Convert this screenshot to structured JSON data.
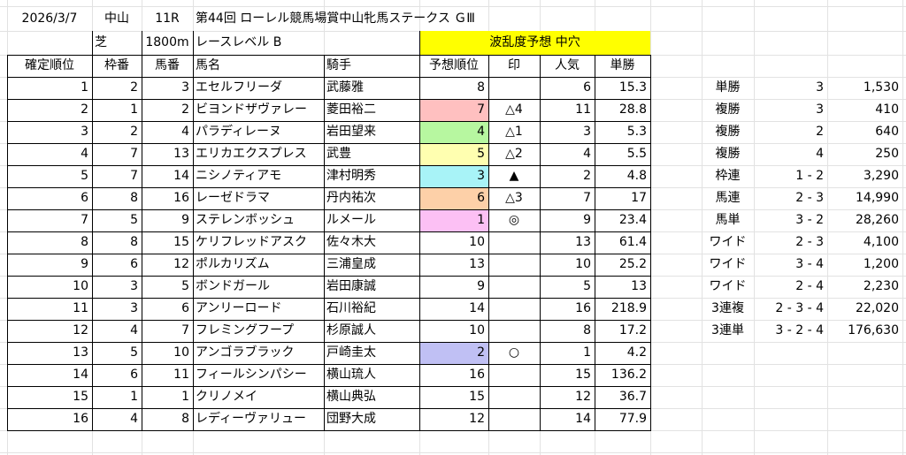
{
  "race": {
    "date": "2026/3/7",
    "venue": "中山",
    "race_no": "11R",
    "title": "第44回 ローレル競馬場賞中山牝馬ステークス ＧⅢ",
    "surface": "芝",
    "distance": "1800m",
    "level": "レースレベル B",
    "forecast": "波乱度予想 中穴"
  },
  "colors": {
    "forecast_bg": "#ffff00",
    "border": "#000000",
    "grid": "#e2e2e2"
  },
  "headers": [
    "確定順位",
    "枠番",
    "馬番",
    "馬名",
    "騎手",
    "予想順位",
    "印",
    "人気",
    "単勝"
  ],
  "rows": [
    {
      "pos": "1",
      "waku": "2",
      "uma": "3",
      "name": "エセルフリーダ",
      "jockey": "武藤雅",
      "pred": "8",
      "mark": "",
      "pop": "6",
      "odds": "15.3",
      "color": ""
    },
    {
      "pos": "2",
      "waku": "1",
      "uma": "2",
      "name": "ビヨンドザヴァレー",
      "jockey": "菱田裕二",
      "pred": "7",
      "mark": "△4",
      "pop": "11",
      "odds": "28.8",
      "color": "#ffc0c0"
    },
    {
      "pos": "3",
      "waku": "2",
      "uma": "4",
      "name": "パラディレーヌ",
      "jockey": "岩田望来",
      "pred": "4",
      "mark": "△1",
      "pop": "3",
      "odds": "5.3",
      "color": "#b7f7a0"
    },
    {
      "pos": "4",
      "waku": "7",
      "uma": "13",
      "name": "エリカエクスプレス",
      "jockey": "武豊",
      "pred": "5",
      "mark": "△2",
      "pop": "4",
      "odds": "5.5",
      "color": "#ffffb0"
    },
    {
      "pos": "5",
      "waku": "7",
      "uma": "14",
      "name": "ニシノティアモ",
      "jockey": "津村明秀",
      "pred": "3",
      "mark": "▲",
      "pop": "2",
      "odds": "4.8",
      "color": "#a8f3f7"
    },
    {
      "pos": "6",
      "waku": "8",
      "uma": "16",
      "name": "レーゼドラマ",
      "jockey": "丹内祐次",
      "pred": "6",
      "mark": "△3",
      "pop": "7",
      "odds": "17",
      "color": "#fdd0a8"
    },
    {
      "pos": "7",
      "waku": "5",
      "uma": "9",
      "name": "ステレンボッシュ",
      "jockey": "ルメール",
      "pred": "1",
      "mark": "◎",
      "pop": "9",
      "odds": "23.4",
      "color": "#fcc0f4"
    },
    {
      "pos": "8",
      "waku": "8",
      "uma": "15",
      "name": "ケリフレッドアスク",
      "jockey": "佐々木大",
      "pred": "10",
      "mark": "",
      "pop": "13",
      "odds": "61.4",
      "color": ""
    },
    {
      "pos": "9",
      "waku": "6",
      "uma": "12",
      "name": "ポルカリズム",
      "jockey": "三浦皇成",
      "pred": "13",
      "mark": "",
      "pop": "10",
      "odds": "25.2",
      "color": ""
    },
    {
      "pos": "10",
      "waku": "3",
      "uma": "5",
      "name": "ボンドガール",
      "jockey": "岩田康誠",
      "pred": "9",
      "mark": "",
      "pop": "5",
      "odds": "13",
      "color": ""
    },
    {
      "pos": "11",
      "waku": "3",
      "uma": "6",
      "name": "アンリーロード",
      "jockey": "石川裕紀",
      "pred": "14",
      "mark": "",
      "pop": "16",
      "odds": "218.9",
      "color": ""
    },
    {
      "pos": "12",
      "waku": "4",
      "uma": "7",
      "name": "フレミングフープ",
      "jockey": "杉原誠人",
      "pred": "10",
      "mark": "",
      "pop": "8",
      "odds": "17.2",
      "color": ""
    },
    {
      "pos": "13",
      "waku": "5",
      "uma": "10",
      "name": "アンゴラブラック",
      "jockey": "戸崎圭太",
      "pred": "2",
      "mark": "○",
      "pop": "1",
      "odds": "4.2",
      "color": "#c0c0f4"
    },
    {
      "pos": "14",
      "waku": "6",
      "uma": "11",
      "name": "フィールシンパシー",
      "jockey": "横山琉人",
      "pred": "16",
      "mark": "",
      "pop": "15",
      "odds": "136.2",
      "color": ""
    },
    {
      "pos": "15",
      "waku": "1",
      "uma": "1",
      "name": "クリノメイ",
      "jockey": "横山典弘",
      "pred": "15",
      "mark": "",
      "pop": "12",
      "odds": "36.7",
      "color": ""
    },
    {
      "pos": "16",
      "waku": "4",
      "uma": "8",
      "name": "レディーヴァリュー",
      "jockey": "団野大成",
      "pred": "12",
      "mark": "",
      "pop": "14",
      "odds": "77.9",
      "color": ""
    }
  ],
  "payouts": [
    {
      "type": "単勝",
      "combo": "3",
      "amount": "1,530"
    },
    {
      "type": "複勝",
      "combo": "3",
      "amount": "410"
    },
    {
      "type": "複勝",
      "combo": "2",
      "amount": "640"
    },
    {
      "type": "複勝",
      "combo": "4",
      "amount": "250"
    },
    {
      "type": "枠連",
      "combo": "1 - 2",
      "amount": "3,290"
    },
    {
      "type": "馬連",
      "combo": "2 - 3",
      "amount": "14,990"
    },
    {
      "type": "馬単",
      "combo": "3 - 2",
      "amount": "28,260"
    },
    {
      "type": "ワイド",
      "combo": "2 - 3",
      "amount": "4,100"
    },
    {
      "type": "ワイド",
      "combo": "3 - 4",
      "amount": "1,200"
    },
    {
      "type": "ワイド",
      "combo": "2 - 4",
      "amount": "2,230"
    },
    {
      "type": "3連複",
      "combo": "2 - 3 - 4",
      "amount": "22,020"
    },
    {
      "type": "3連単",
      "combo": "3 - 2 - 4",
      "amount": "176,630"
    }
  ]
}
